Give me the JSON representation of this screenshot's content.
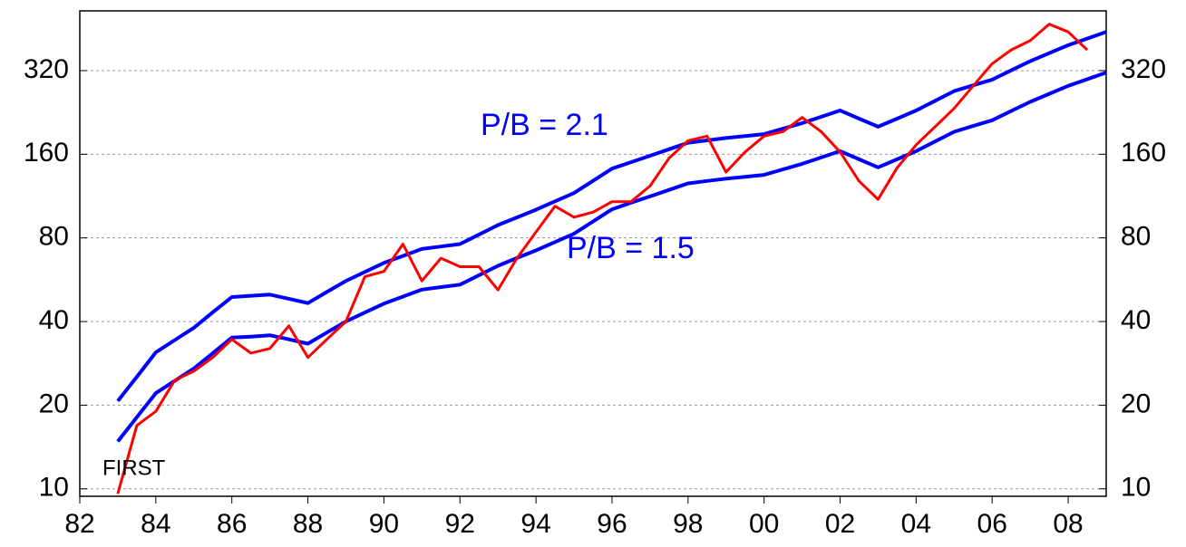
{
  "chart_data": {
    "type": "line",
    "log_scale": true,
    "grid": true,
    "annotations": [
      {
        "text": "P/B = 2.1",
        "color": "#0000ff"
      },
      {
        "text": "P/B = 1.5",
        "color": "#0000ff"
      },
      {
        "text": "FIRST",
        "color": "#000000"
      }
    ],
    "x": [
      1983,
      1983.5,
      1984,
      1984.5,
      1985,
      1985.5,
      1986,
      1986.5,
      1987,
      1987.5,
      1988,
      1988.5,
      1989,
      1989.5,
      1990,
      1990.5,
      1991,
      1991.5,
      1992,
      1992.5,
      1993,
      1993.5,
      1994,
      1994.5,
      1995,
      1995.5,
      1996,
      1996.5,
      1997,
      1997.5,
      1998,
      1998.5,
      1999,
      1999.5,
      2000,
      2000.5,
      2001,
      2001.5,
      2002,
      2002.5,
      2003,
      2003.5,
      2004,
      2004.5,
      2005,
      2005.5,
      2006,
      2006.5,
      2007,
      2007.5,
      2008,
      2008.5,
      2009
    ],
    "series": [
      {
        "color": "#ff0000",
        "values": [
          9.6,
          16.9,
          19,
          24.6,
          26.5,
          29.7,
          34.5,
          30.8,
          32,
          38.6,
          29.7,
          34.5,
          40,
          58,
          60.6,
          76,
          56,
          67.6,
          63,
          63,
          52,
          67.6,
          84,
          104,
          95,
          99,
          108,
          108,
          123,
          155,
          179,
          186,
          138,
          163,
          186,
          193,
          217,
          193,
          163,
          128,
          110,
          143,
          173,
          201,
          234,
          282,
          339,
          380,
          410,
          470,
          441,
          380,
          null
        ]
      },
      {
        "color": "#0000ff",
        "values": [
          20.7,
          25.3,
          31,
          34.3,
          38,
          43.2,
          49,
          49.5,
          50,
          48.3,
          46.6,
          51.1,
          56,
          60.3,
          65,
          68.9,
          73,
          74.5,
          76,
          82.2,
          89,
          94.8,
          101,
          108.3,
          116,
          128.3,
          142,
          149.8,
          158,
          166.8,
          176,
          179.5,
          183,
          186,
          189,
          197.8,
          207,
          218.2,
          230,
          215,
          201,
          215,
          230,
          249.2,
          270,
          283.2,
          297,
          320.6,
          346,
          369.7,
          395,
          417.4,
          441
        ]
      },
      {
        "color": "#0000ff",
        "values": [
          14.8,
          18.1,
          22.1,
          24.5,
          27.1,
          30.8,
          35,
          35.3,
          35.7,
          34.5,
          33.3,
          36.5,
          40,
          43.1,
          46.4,
          49.2,
          52.1,
          53.2,
          54.3,
          58.7,
          63.5,
          67.7,
          72.1,
          77.3,
          82.8,
          91.6,
          101.4,
          107,
          112.8,
          119.1,
          125.7,
          128.2,
          130.7,
          132.8,
          134.9,
          141.2,
          147.8,
          155.8,
          164.2,
          153.5,
          143.5,
          153.5,
          164.2,
          177.9,
          192.8,
          202.2,
          212.1,
          228.9,
          247,
          264,
          282,
          298,
          314.9
        ]
      }
    ],
    "xlim": [
      1982,
      2009
    ],
    "xticks": [
      {
        "value": 1982,
        "label": "82"
      },
      {
        "value": 1984,
        "label": "84"
      },
      {
        "value": 1986,
        "label": "86"
      },
      {
        "value": 1988,
        "label": "88"
      },
      {
        "value": 1990,
        "label": "90"
      },
      {
        "value": 1992,
        "label": "92"
      },
      {
        "value": 1994,
        "label": "94"
      },
      {
        "value": 1996,
        "label": "96"
      },
      {
        "value": 1998,
        "label": "98"
      },
      {
        "value": 2000,
        "label": "00"
      },
      {
        "value": 2002,
        "label": "02"
      },
      {
        "value": 2004,
        "label": "04"
      },
      {
        "value": 2006,
        "label": "06"
      },
      {
        "value": 2008,
        "label": "08"
      }
    ],
    "ylim": [
      9.4,
      525
    ],
    "yticks": [
      10,
      20,
      40,
      80,
      160,
      320
    ],
    "y2lim": [
      9.4,
      525
    ],
    "y2ticks": [
      10,
      20,
      40,
      80,
      160,
      320
    ]
  }
}
